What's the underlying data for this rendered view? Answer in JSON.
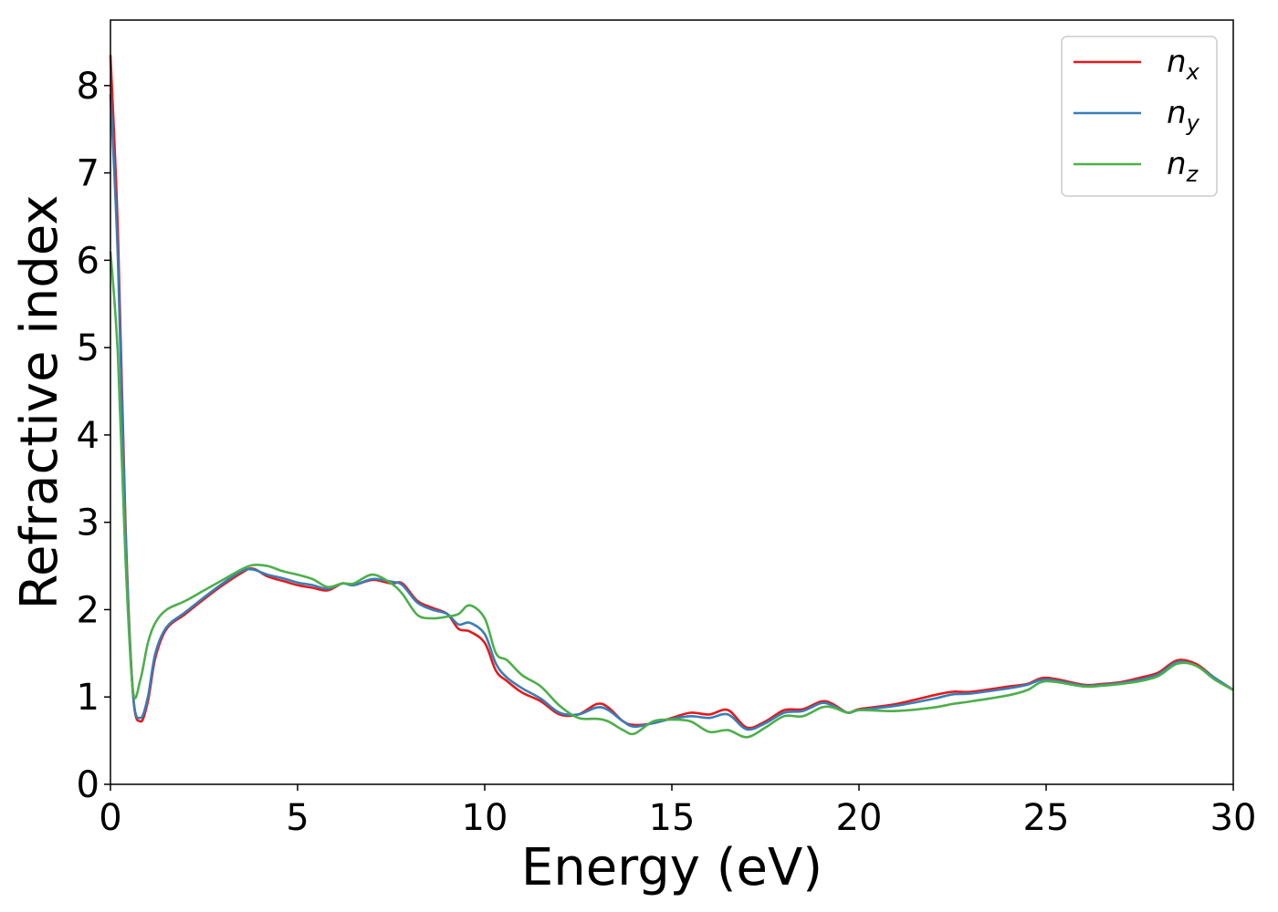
{
  "chart_data": {
    "type": "line",
    "title": "",
    "xlabel": "Energy (eV)",
    "ylabel": "Refractive index",
    "xlim": [
      0,
      30
    ],
    "ylim": [
      0,
      8.75
    ],
    "xticks": [
      0,
      5,
      10,
      15,
      20,
      25,
      30
    ],
    "yticks": [
      0,
      1,
      2,
      3,
      4,
      5,
      6,
      7,
      8
    ],
    "grid": false,
    "legend_position": "top-right",
    "series": [
      {
        "name": "n",
        "subscript": "x",
        "color": "#e41a1c",
        "x": [
          0,
          0.2,
          0.4,
          0.6,
          0.8,
          1.0,
          1.2,
          1.5,
          2,
          2.5,
          3,
          3.5,
          3.8,
          4.2,
          4.6,
          5,
          5.4,
          5.8,
          6.2,
          6.5,
          7,
          7.5,
          7.8,
          8.2,
          8.6,
          9,
          9.3,
          9.6,
          10,
          10.3,
          10.6,
          11,
          11.5,
          12,
          12.5,
          13,
          13.3,
          13.7,
          14,
          14.5,
          15,
          15.5,
          16,
          16.5,
          17,
          17.5,
          18,
          18.5,
          19,
          19.3,
          19.7,
          20,
          21,
          22,
          22.5,
          23,
          24,
          24.5,
          25,
          26,
          26.5,
          27,
          27.5,
          28,
          28.5,
          29,
          29.5,
          30
        ],
        "values": [
          8.35,
          6.3,
          3.0,
          1.05,
          0.72,
          0.95,
          1.45,
          1.78,
          1.95,
          2.12,
          2.28,
          2.42,
          2.47,
          2.38,
          2.33,
          2.28,
          2.25,
          2.22,
          2.3,
          2.28,
          2.34,
          2.3,
          2.3,
          2.1,
          2.02,
          1.95,
          1.78,
          1.75,
          1.62,
          1.3,
          1.18,
          1.05,
          0.95,
          0.8,
          0.8,
          0.92,
          0.88,
          0.72,
          0.68,
          0.7,
          0.76,
          0.82,
          0.8,
          0.85,
          0.65,
          0.72,
          0.85,
          0.86,
          0.95,
          0.92,
          0.82,
          0.86,
          0.92,
          1.02,
          1.06,
          1.06,
          1.12,
          1.15,
          1.22,
          1.14,
          1.15,
          1.17,
          1.22,
          1.28,
          1.42,
          1.38,
          1.22,
          1.08
        ]
      },
      {
        "name": "n",
        "subscript": "y",
        "color": "#377eb8",
        "x": [
          0,
          0.2,
          0.4,
          0.6,
          0.8,
          1.0,
          1.2,
          1.5,
          2,
          2.5,
          3,
          3.5,
          3.8,
          4.2,
          4.6,
          5,
          5.4,
          5.8,
          6.2,
          6.5,
          7,
          7.5,
          7.8,
          8.2,
          8.6,
          9,
          9.3,
          9.6,
          10,
          10.3,
          10.6,
          11,
          11.5,
          12,
          12.5,
          13,
          13.3,
          13.7,
          14,
          14.5,
          15,
          15.5,
          16,
          16.5,
          17,
          17.5,
          18,
          18.5,
          19,
          19.3,
          19.7,
          20,
          21,
          22,
          22.5,
          23,
          24,
          24.5,
          25,
          26,
          26.5,
          27,
          27.5,
          28,
          28.5,
          29,
          29.5,
          30
        ],
        "values": [
          7.9,
          6.0,
          2.9,
          1.05,
          0.76,
          1.0,
          1.5,
          1.8,
          1.97,
          2.14,
          2.3,
          2.44,
          2.46,
          2.4,
          2.36,
          2.31,
          2.28,
          2.24,
          2.3,
          2.28,
          2.35,
          2.32,
          2.28,
          2.08,
          2.0,
          1.95,
          1.83,
          1.85,
          1.72,
          1.38,
          1.22,
          1.1,
          0.98,
          0.82,
          0.8,
          0.88,
          0.85,
          0.72,
          0.66,
          0.7,
          0.75,
          0.78,
          0.76,
          0.8,
          0.63,
          0.7,
          0.82,
          0.84,
          0.93,
          0.9,
          0.82,
          0.85,
          0.9,
          0.98,
          1.03,
          1.04,
          1.1,
          1.14,
          1.2,
          1.13,
          1.14,
          1.16,
          1.2,
          1.26,
          1.4,
          1.36,
          1.22,
          1.08
        ]
      },
      {
        "name": "n",
        "subscript": "z",
        "color": "#4daf4a",
        "x": [
          0,
          0.2,
          0.4,
          0.6,
          0.8,
          1.0,
          1.2,
          1.5,
          2,
          2.5,
          3,
          3.5,
          3.8,
          4.2,
          4.6,
          5,
          5.4,
          5.8,
          6.2,
          6.5,
          7,
          7.5,
          7.8,
          8.2,
          8.6,
          9,
          9.3,
          9.6,
          10,
          10.3,
          10.6,
          11,
          11.5,
          12,
          12.5,
          13,
          13.3,
          13.7,
          14,
          14.5,
          15,
          15.5,
          16,
          16.5,
          17,
          17.5,
          18,
          18.5,
          19,
          19.3,
          19.7,
          20,
          21,
          22,
          22.5,
          23,
          24,
          24.5,
          25,
          26,
          26.5,
          27,
          27.5,
          28,
          28.5,
          29,
          29.5,
          30
        ],
        "values": [
          6.1,
          4.9,
          2.6,
          1.08,
          1.2,
          1.62,
          1.85,
          2.0,
          2.1,
          2.22,
          2.34,
          2.46,
          2.51,
          2.5,
          2.44,
          2.4,
          2.35,
          2.26,
          2.3,
          2.3,
          2.4,
          2.3,
          2.18,
          1.94,
          1.9,
          1.92,
          1.95,
          2.05,
          1.9,
          1.5,
          1.42,
          1.25,
          1.12,
          0.9,
          0.76,
          0.75,
          0.72,
          0.62,
          0.58,
          0.72,
          0.74,
          0.72,
          0.6,
          0.62,
          0.54,
          0.65,
          0.78,
          0.78,
          0.88,
          0.88,
          0.82,
          0.85,
          0.84,
          0.88,
          0.92,
          0.95,
          1.02,
          1.08,
          1.18,
          1.12,
          1.13,
          1.15,
          1.18,
          1.24,
          1.38,
          1.36,
          1.2,
          1.08
        ]
      }
    ]
  }
}
